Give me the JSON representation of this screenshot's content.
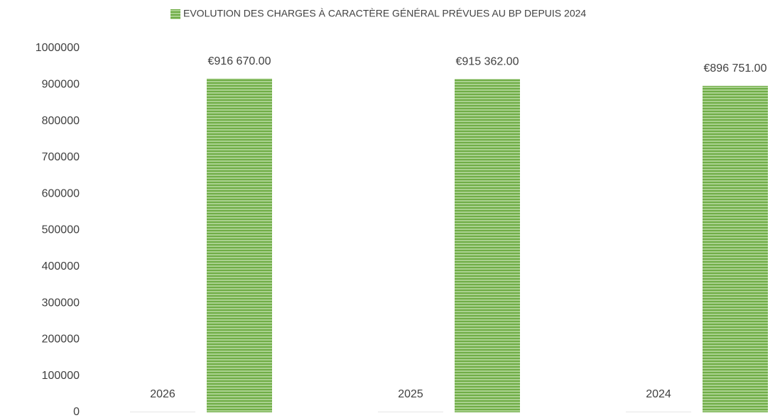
{
  "chart_data": {
    "type": "bar",
    "categories": [
      null,
      null,
      null
    ],
    "series": [
      {
        "color": "#e7e6e6",
        "values": [
          2026,
          2025,
          2024
        ]
      },
      {
        "name": "EVOLUTION DES CHARGES À CARACTÈRE GÉNÉRAL PRÉVUES AU BP DEPUIS 2024",
        "color": "#70ad47",
        "values": [
          916670,
          915362,
          896751
        ],
        "value_labels": [
          "€916 670.00",
          "€915 362.00",
          "€896 751.00"
        ]
      }
    ],
    "ylim": [
      0,
      1000000
    ],
    "yticks": [
      0,
      100000,
      200000,
      300000,
      400000,
      500000,
      600000,
      700000,
      800000,
      900000,
      1000000
    ],
    "grid": false,
    "legend": "top"
  }
}
